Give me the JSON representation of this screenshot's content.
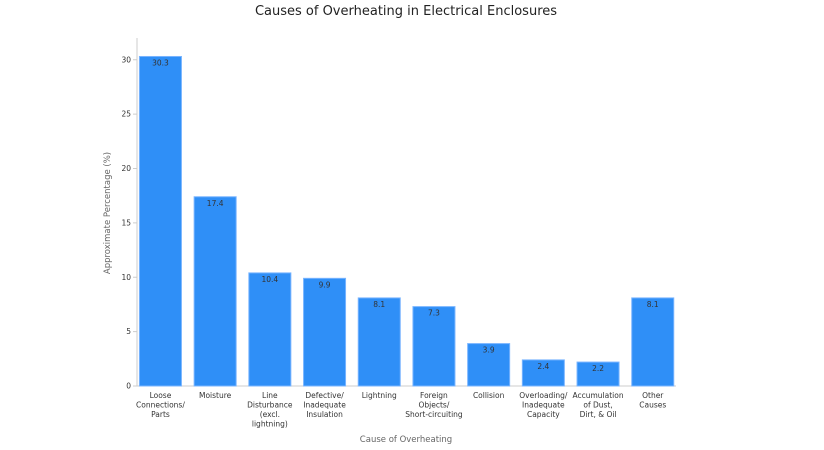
{
  "chart_data": {
    "type": "bar",
    "title": "Causes of Overheating in Electrical Enclosures",
    "xlabel": "Cause of Overheating",
    "ylabel": "Approximate Percentage (%)",
    "ylim": [
      0,
      32
    ],
    "yticks": [
      0,
      5,
      10,
      15,
      20,
      25,
      30
    ],
    "grid": false,
    "bar_color": "#2f8ff7",
    "categories": [
      [
        "Loose",
        "Connections/",
        "Parts"
      ],
      [
        "Moisture"
      ],
      [
        "Line",
        "Disturbance",
        "(excl.",
        "lightning)"
      ],
      [
        "Defective/",
        "Inadequate",
        "Insulation"
      ],
      [
        "Lightning"
      ],
      [
        "Foreign",
        "Objects/",
        "Short-circuiting"
      ],
      [
        "Collision"
      ],
      [
        "Overloading/",
        "Inadequate",
        "Capacity"
      ],
      [
        "Accumulation",
        "of Dust,",
        "Dirt, & Oil"
      ],
      [
        "Other",
        "Causes"
      ]
    ],
    "values": [
      30.3,
      17.4,
      10.4,
      9.9,
      8.1,
      7.3,
      3.9,
      2.4,
      2.2,
      8.1
    ],
    "value_labels": [
      "30.3",
      "17.4",
      "10.4",
      "9.9",
      "8.1",
      "7.3",
      "3.9",
      "2.4",
      "2.2",
      "8.1"
    ]
  }
}
